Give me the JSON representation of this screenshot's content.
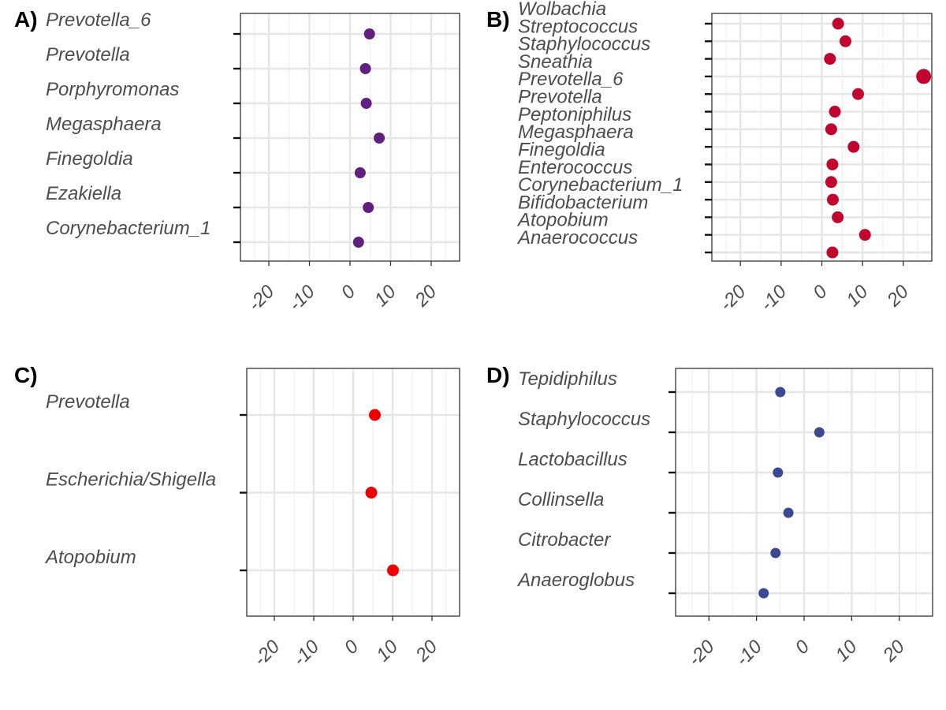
{
  "chart_data": [
    {
      "type": "scatter",
      "panel_tag": "A)",
      "categories": [
        "Prevotella_6",
        "Prevotella",
        "Porphyromonas",
        "Megasphaera",
        "Finegoldia",
        "Ezakiella",
        "Corynebacterium_1"
      ],
      "values": [
        4.8,
        3.8,
        4.0,
        7.2,
        2.5,
        4.5,
        2.1
      ],
      "color": "#611f80",
      "xlim": [
        -27,
        27
      ],
      "xticks": [
        "-20",
        "-10",
        "0",
        "10",
        "20"
      ],
      "xtick_values": [
        -20,
        -10,
        0,
        10,
        20
      ],
      "grid": true,
      "xlabel": "",
      "ylabel": ""
    },
    {
      "type": "scatter",
      "panel_tag": "B)",
      "categories": [
        "Wolbachia",
        "Streptococcus",
        "Staphylococcus",
        "Sneathia",
        "Prevotella_6",
        "Prevotella",
        "Peptoniphilus",
        "Megasphaera",
        "Finegoldia",
        "Enterococcus",
        "Corynebacterium_1",
        "Bifidobacterium",
        "Atopobium",
        "Anaerococcus"
      ],
      "values": [
        4.0,
        5.8,
        2.0,
        25.0,
        8.9,
        3.2,
        2.3,
        7.8,
        2.6,
        2.3,
        2.7,
        3.9,
        10.6,
        2.6
      ],
      "color": "#c1052c",
      "xlim": [
        -27,
        27
      ],
      "xticks": [
        "-20",
        "-10",
        "0",
        "10",
        "20"
      ],
      "xtick_values": [
        -20,
        -10,
        0,
        10,
        20
      ],
      "grid": true,
      "xlabel": "",
      "ylabel": ""
    },
    {
      "type": "scatter",
      "panel_tag": "C)",
      "categories": [
        "Prevotella",
        "Escherichia/Shigella",
        "Atopobium"
      ],
      "values": [
        5.5,
        4.6,
        10.1
      ],
      "color": "#ee0000",
      "xlim": [
        -27,
        27
      ],
      "xticks": [
        "-20",
        "-10",
        "0",
        "10",
        "20"
      ],
      "xtick_values": [
        -20,
        -10,
        0,
        10,
        20
      ],
      "grid": true,
      "xlabel": "",
      "ylabel": ""
    },
    {
      "type": "scatter",
      "panel_tag": "D)",
      "categories": [
        "Tepidiphilus",
        "Staphylococcus",
        "Lactobacillus",
        "Collinsella",
        "Citrobacter",
        "Anaeroglobus"
      ],
      "values": [
        -5.0,
        3.2,
        -5.5,
        -3.3,
        -6.0,
        -8.5
      ],
      "color": "#3b4994",
      "xlim": [
        -27,
        27
      ],
      "xticks": [
        "-20",
        "-10",
        "0",
        "10",
        "20"
      ],
      "xtick_values": [
        -20,
        -10,
        0,
        10,
        20
      ],
      "grid": true,
      "xlabel": "",
      "ylabel": ""
    }
  ]
}
